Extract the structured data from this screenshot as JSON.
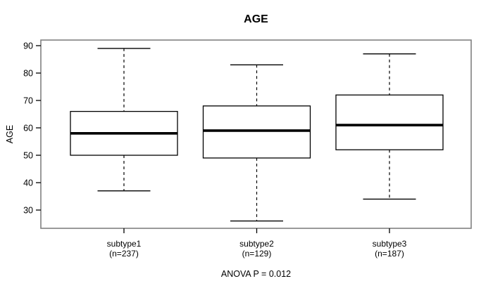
{
  "title": "AGE",
  "y_axis": {
    "label": "AGE",
    "ticks": [
      30,
      40,
      50,
      60,
      70,
      80,
      90
    ]
  },
  "footer": "ANOVA P = 0.012",
  "colors": {
    "background": "#ffffff",
    "frame": "#808080",
    "box_stroke": "#000000",
    "median": "#000000",
    "whisker": "#000000",
    "text": "#000000"
  },
  "chart_data": {
    "type": "boxplot",
    "title": "AGE",
    "ylabel": "AGE",
    "xlabel": "",
    "ylim": [
      23,
      92
    ],
    "yticks": [
      30,
      40,
      50,
      60,
      70,
      80,
      90
    ],
    "grid": false,
    "legend": "none",
    "annotation": "ANOVA P = 0.012",
    "categories": [
      "subtype1",
      "subtype2",
      "subtype3"
    ],
    "category_sublabels": [
      "(n=237)",
      "(n=129)",
      "(n=187)"
    ],
    "series": [
      {
        "name": "subtype1",
        "n": 237,
        "whisker_low": 37,
        "q1": 50,
        "median": 58,
        "q3": 66,
        "whisker_high": 89
      },
      {
        "name": "subtype2",
        "n": 129,
        "whisker_low": 26,
        "q1": 49,
        "median": 59,
        "q3": 68,
        "whisker_high": 83
      },
      {
        "name": "subtype3",
        "n": 187,
        "whisker_low": 34,
        "q1": 52,
        "median": 61,
        "q3": 72,
        "whisker_high": 87
      }
    ]
  }
}
